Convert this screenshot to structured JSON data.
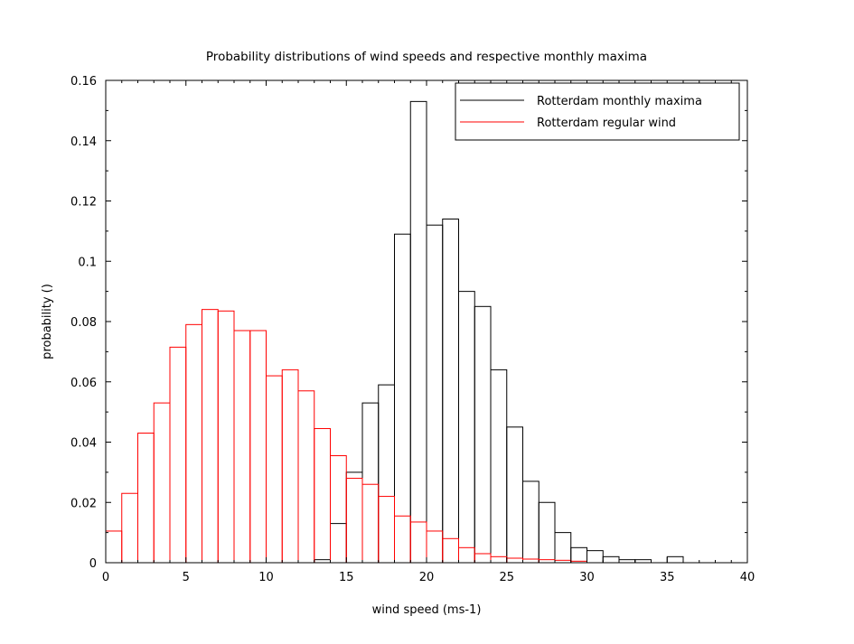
{
  "chart_data": {
    "type": "bar",
    "title": "Probability distributions of wind speeds and respective monthly maxima",
    "xlabel": "wind speed (ms-1)",
    "ylabel": "probability ()",
    "xlim": [
      0,
      40
    ],
    "ylim": [
      0,
      0.16
    ],
    "x_ticks": [
      "0",
      "5",
      "10",
      "15",
      "20",
      "25",
      "30",
      "35",
      "40"
    ],
    "y_ticks": [
      "0",
      "0.02",
      "0.04",
      "0.06",
      "0.08",
      "0.1",
      "0.12",
      "0.14",
      "0.16"
    ],
    "legend_position": "top-right",
    "bin_width": 1,
    "series": [
      {
        "name": "Rotterdam monthly maxima",
        "color": "#000000",
        "bins": [
          [
            13,
            0.001
          ],
          [
            14,
            0.013
          ],
          [
            15,
            0.03
          ],
          [
            16,
            0.053
          ],
          [
            17,
            0.059
          ],
          [
            18,
            0.109
          ],
          [
            19,
            0.153
          ],
          [
            20,
            0.112
          ],
          [
            21,
            0.114
          ],
          [
            22,
            0.09
          ],
          [
            23,
            0.085
          ],
          [
            24,
            0.064
          ],
          [
            25,
            0.045
          ],
          [
            26,
            0.027
          ],
          [
            27,
            0.02
          ],
          [
            28,
            0.01
          ],
          [
            29,
            0.005
          ],
          [
            30,
            0.004
          ],
          [
            31,
            0.002
          ],
          [
            32,
            0.001
          ],
          [
            33,
            0.001
          ],
          [
            35,
            0.002
          ]
        ]
      },
      {
        "name": "Rotterdam regular wind",
        "color": "#ff0000",
        "bins": [
          [
            0,
            0.0105
          ],
          [
            1,
            0.023
          ],
          [
            2,
            0.043
          ],
          [
            3,
            0.053
          ],
          [
            4,
            0.0715
          ],
          [
            5,
            0.079
          ],
          [
            6,
            0.084
          ],
          [
            7,
            0.0835
          ],
          [
            8,
            0.077
          ],
          [
            9,
            0.077
          ],
          [
            10,
            0.062
          ],
          [
            11,
            0.064
          ],
          [
            12,
            0.057
          ],
          [
            13,
            0.0445
          ],
          [
            14,
            0.0355
          ],
          [
            15,
            0.028
          ],
          [
            16,
            0.026
          ],
          [
            17,
            0.022
          ],
          [
            18,
            0.0155
          ],
          [
            19,
            0.0135
          ],
          [
            20,
            0.0105
          ],
          [
            21,
            0.008
          ],
          [
            22,
            0.005
          ],
          [
            23,
            0.003
          ],
          [
            24,
            0.002
          ],
          [
            25,
            0.0015
          ],
          [
            26,
            0.0012
          ],
          [
            27,
            0.001
          ],
          [
            28,
            0.0008
          ],
          [
            29,
            0.0005
          ]
        ]
      }
    ]
  }
}
